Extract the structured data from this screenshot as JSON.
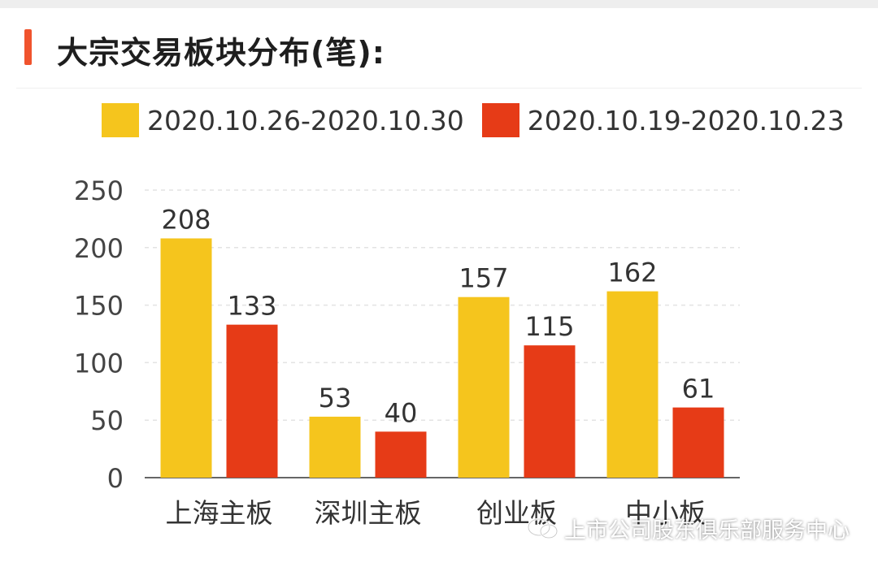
{
  "header": {
    "title": "大宗交易板块分布(笔):"
  },
  "watermark": {
    "text": "上市公司股东俱乐部服务中心",
    "icon": "wechat-icon"
  },
  "colors": {
    "accent": "#f0532d",
    "series1": "#f5c51d",
    "series2": "#e63b17"
  },
  "chart_data": {
    "type": "bar",
    "title": "大宗交易板块分布(笔):",
    "categories": [
      "上海主板",
      "深圳主板",
      "创业板",
      "中小板"
    ],
    "series": [
      {
        "name": "2020.10.26-2020.10.30",
        "values": [
          208,
          53,
          157,
          162
        ],
        "color": "#f5c51d"
      },
      {
        "name": "2020.10.19-2020.10.23",
        "values": [
          133,
          40,
          115,
          61
        ],
        "color": "#e63b17"
      }
    ],
    "ylim": [
      0,
      250
    ],
    "yticks": [
      0,
      50,
      100,
      150,
      200,
      250
    ],
    "xlabel": "",
    "ylabel": "",
    "grid": true,
    "legend": "top",
    "data_labels": true
  }
}
